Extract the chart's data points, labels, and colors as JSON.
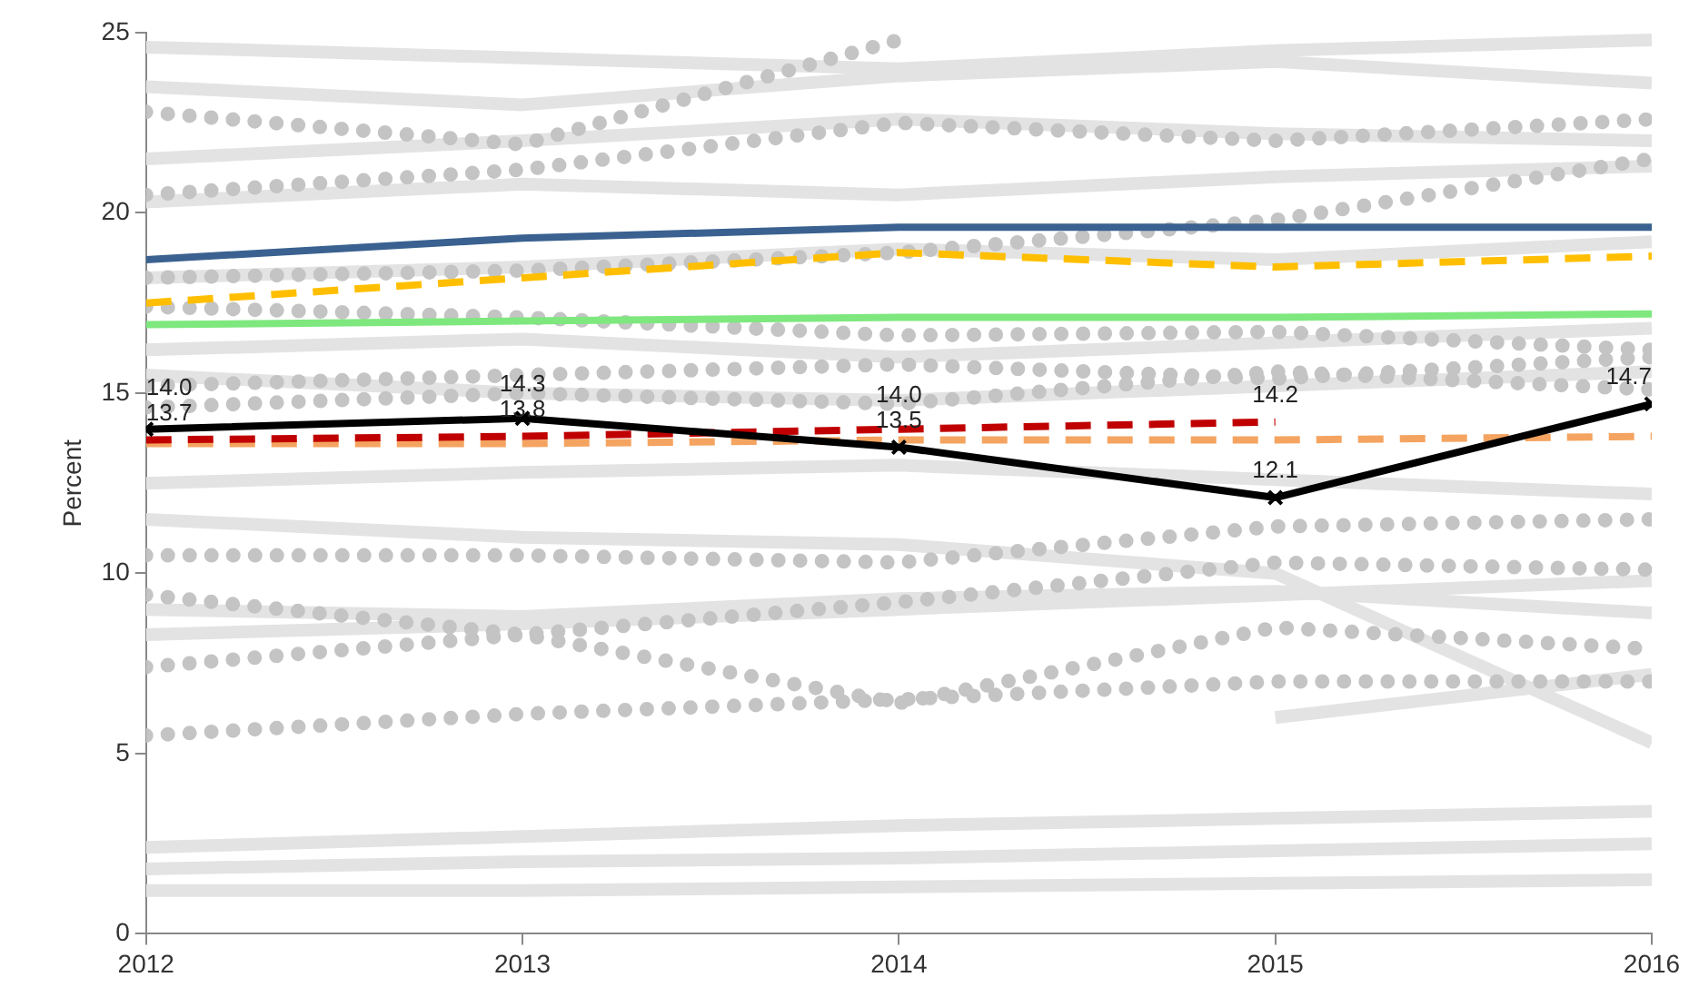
{
  "chart_data": {
    "type": "line",
    "ylabel": "Percent",
    "x": [
      2012,
      2013,
      2014,
      2015,
      2016
    ],
    "xlim": [
      2012,
      2016
    ],
    "xticks": [
      2012,
      2013,
      2014,
      2015,
      2016
    ],
    "ylim": [
      0,
      25
    ],
    "yticks": [
      0,
      5,
      10,
      15,
      20,
      25
    ],
    "grid": false,
    "legend": false,
    "marker": "none",
    "line_style": "solid",
    "series": [
      {
        "color": "#e3e3e3",
        "values": [
          2.4,
          2.7,
          3.0,
          3.2,
          3.4
        ]
      },
      {
        "color": "#e3e3e3",
        "values": [
          1.8,
          2.0,
          2.1,
          2.3,
          2.5
        ]
      },
      {
        "color": "#e3e3e3",
        "values": [
          1.2,
          1.2,
          1.3,
          1.4,
          1.5
        ]
      },
      {
        "color": "#e3e3e3",
        "x": [
          2015,
          2016
        ],
        "values": [
          6.0,
          7.2
        ]
      },
      {
        "color": "#e3e3e3",
        "values": [
          11.5,
          11.0,
          10.8,
          10.0,
          5.3
        ]
      },
      {
        "color": "#e3e3e3",
        "values": [
          8.3,
          8.6,
          9.0,
          9.4,
          9.8
        ]
      },
      {
        "color": "#e3e3e3",
        "values": [
          9.0,
          8.8,
          9.3,
          9.5,
          8.9
        ]
      },
      {
        "color": "#e3e3e3",
        "values": [
          12.5,
          12.8,
          13.0,
          12.6,
          12.2
        ]
      },
      {
        "color": "#e3e3e3",
        "values": [
          15.5,
          15.0,
          14.8,
          15.2,
          15.6
        ]
      },
      {
        "color": "#e3e3e3",
        "values": [
          16.2,
          16.5,
          16.0,
          16.4,
          16.8
        ]
      },
      {
        "color": "#e3e3e3",
        "values": [
          18.2,
          18.5,
          19.0,
          18.7,
          19.2
        ]
      },
      {
        "color": "#e3e3e3",
        "values": [
          20.3,
          20.8,
          20.5,
          21.0,
          21.3
        ]
      },
      {
        "color": "#e3e3e3",
        "values": [
          21.5,
          22.0,
          22.6,
          22.2,
          22.0
        ]
      },
      {
        "color": "#e3e3e3",
        "values": [
          23.5,
          23.0,
          23.8,
          24.2,
          23.6
        ]
      },
      {
        "color": "#e3e3e3",
        "values": [
          24.6,
          24.3,
          24.0,
          24.5,
          24.8
        ]
      },
      {
        "color": "#c4c4c4",
        "line_style": "dotted",
        "values": [
          5.5,
          6.1,
          6.5,
          7.0,
          7.0
        ]
      },
      {
        "color": "#c4c4c4",
        "line_style": "dotted",
        "values": [
          7.4,
          8.3,
          6.4,
          8.5,
          7.9
        ]
      },
      {
        "color": "#c4c4c4",
        "line_style": "dotted",
        "values": [
          9.4,
          8.3,
          9.2,
          10.3,
          10.1
        ]
      },
      {
        "color": "#c4c4c4",
        "line_style": "dotted",
        "values": [
          10.5,
          10.5,
          10.3,
          11.3,
          11.5
        ]
      },
      {
        "color": "#c4c4c4",
        "line_style": "dotted",
        "values": [
          22.8,
          21.9,
          24.8,
          null,
          null
        ]
      },
      {
        "color": "#c4c4c4",
        "line_style": "dotted",
        "values": [
          15.2,
          15.5,
          15.8,
          15.4,
          16.0
        ]
      },
      {
        "color": "#c4c4c4",
        "line_style": "dotted",
        "values": [
          17.4,
          17.1,
          16.6,
          16.7,
          16.2
        ]
      },
      {
        "color": "#c4c4c4",
        "line_style": "dotted",
        "values": [
          18.2,
          18.4,
          18.9,
          19.8,
          21.5
        ]
      },
      {
        "color": "#c4c4c4",
        "line_style": "dotted",
        "values": [
          20.5,
          21.2,
          22.5,
          22.0,
          22.6
        ]
      },
      {
        "color": "#c4c4c4",
        "line_style": "dotted",
        "values": [
          14.6,
          15.0,
          14.7,
          15.6,
          15.1
        ]
      },
      {
        "color": "#f4a460",
        "line_style": "dashed",
        "values": [
          13.6,
          13.6,
          13.7,
          13.7,
          13.8
        ]
      },
      {
        "color": "#7ee87e",
        "values": [
          16.9,
          17.0,
          17.1,
          17.1,
          17.2
        ]
      },
      {
        "color": "#ffbf00",
        "line_style": "dashed",
        "values": [
          17.5,
          18.2,
          18.9,
          18.5,
          18.8
        ]
      },
      {
        "color": "#3a6190",
        "values": [
          18.7,
          19.3,
          19.6,
          19.6,
          19.6
        ]
      },
      {
        "color": "#c00000",
        "line_style": "dashed",
        "x": [
          2012,
          2013,
          2014,
          2015
        ],
        "values": [
          13.7,
          13.8,
          14.0,
          14.2
        ],
        "value_labels": [
          "13.7",
          "13.8",
          "14.0",
          "14.2"
        ]
      },
      {
        "color": "#000000",
        "marker": "cross",
        "values": [
          14.0,
          14.3,
          13.5,
          12.1,
          14.7
        ],
        "value_labels": [
          "14.0",
          "14.3",
          "13.5",
          "12.1",
          "14.7"
        ]
      }
    ]
  }
}
